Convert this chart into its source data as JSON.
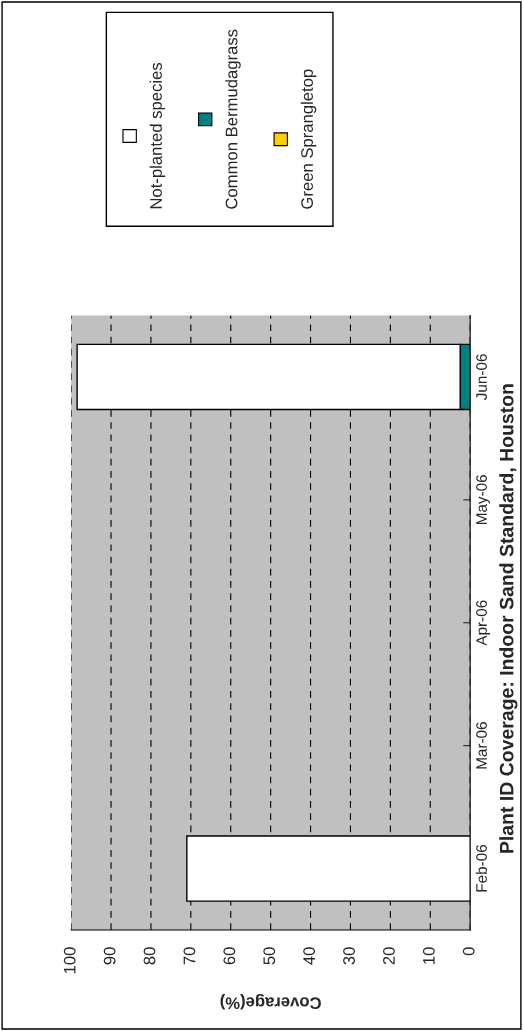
{
  "chart_data": {
    "type": "bar",
    "orientation": "horizontal",
    "stacked": true,
    "title": "Plant ID Coverage: Indoor Sand Standard, Houston",
    "xlabel": "Coverage(%)",
    "categories": [
      "Jun-06",
      "May-06",
      "Apr-06",
      "Mar-06",
      "Feb-06"
    ],
    "series": [
      {
        "name": "Green Sprangletop",
        "color": "#ffcc00",
        "values": [
          null,
          null,
          null,
          null,
          null
        ]
      },
      {
        "name": "Common Bermudagrass",
        "color": "#008080",
        "values": [
          2.5,
          null,
          null,
          null,
          null
        ]
      },
      {
        "name": "Not-planted species",
        "color": "#ffffff",
        "values": [
          96,
          null,
          null,
          null,
          71
        ]
      }
    ],
    "xlim": [
      100,
      0
    ],
    "xticks": [
      0,
      10,
      20,
      30,
      40,
      50,
      60,
      70,
      80,
      90,
      100
    ],
    "grid": "x",
    "legend": "top"
  }
}
